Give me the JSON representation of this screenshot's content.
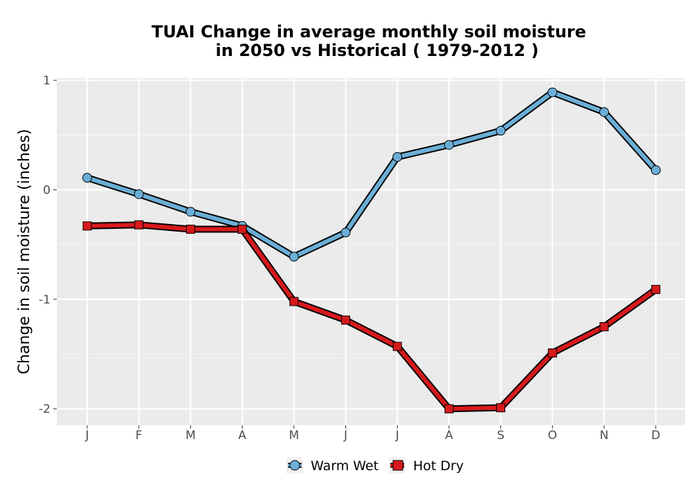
{
  "chart_data": {
    "type": "line",
    "title_lines": [
      "TUAI  Change in average monthly soil moisture",
      "in 2050 vs Historical ( 1979-2012 )"
    ],
    "xlabel": "",
    "ylabel": "Change in soil moisture (inches)",
    "categories": [
      "J",
      "F",
      "M",
      "A",
      "M",
      "J",
      "J",
      "A",
      "S",
      "O",
      "N",
      "D"
    ],
    "y_ticks": [
      1,
      0,
      -1,
      -2
    ],
    "y_tick_labels": [
      "1",
      "0",
      "-1",
      "-2"
    ],
    "ylim": [
      -2.15,
      1.02
    ],
    "grid": true,
    "legend_position": "bottom",
    "series": [
      {
        "name": "Warm Wet",
        "marker": "circle",
        "color": "#6baed6",
        "values": [
          0.11,
          -0.04,
          -0.2,
          -0.33,
          -0.61,
          -0.39,
          0.3,
          0.41,
          0.54,
          0.89,
          0.71,
          0.18
        ]
      },
      {
        "name": "Hot Dry",
        "marker": "square",
        "color": "#d7191c",
        "values": [
          -0.33,
          -0.32,
          -0.36,
          -0.36,
          -1.02,
          -1.19,
          -1.43,
          -2.0,
          -1.99,
          -1.49,
          -1.25,
          -0.91
        ]
      }
    ]
  }
}
